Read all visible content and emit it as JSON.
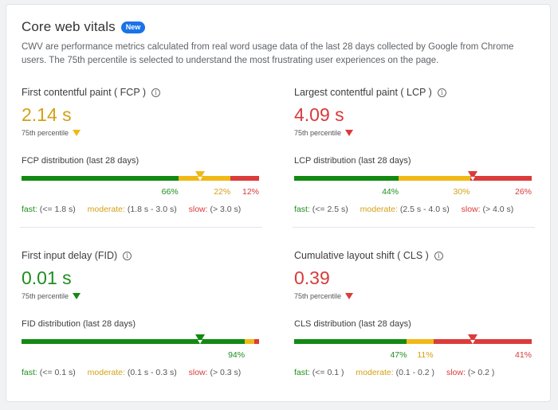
{
  "header": {
    "title": "Core web vitals",
    "badge": "New",
    "description": "CWV are performance metrics calculated from real word usage data of the last 28 days collected by Google from Chrome users. The 75th percentile is selected to understand the most frustrating user experiences on the page."
  },
  "colors": {
    "fast": "#128a12",
    "moderate": "#f0b916",
    "slow": "#dc3b3b",
    "badge": "#1a73e8",
    "fast_text": "#1e8e1e",
    "moderate_text": "#d4a017",
    "slow_text": "#d93a3a"
  },
  "metrics": {
    "fcp": {
      "name": "First contentful paint ( FCP )",
      "value": "2.14 s",
      "status": "moderate",
      "percentile_label": "75th percentile",
      "distribution_label": "FCP distribution (last 28 days)",
      "fast_pct": 66,
      "moderate_pct": 22,
      "slow_pct": 12,
      "fast_label": "66%",
      "moderate_label": "22%",
      "slow_label": "12%",
      "marker_pct": 75,
      "legend": {
        "fast_key": "fast:",
        "fast_range": "(<= 1.8 s)",
        "moderate_key": "moderate:",
        "moderate_range": "(1.8 s - 3.0 s)",
        "slow_key": "slow:",
        "slow_range": "(> 3.0 s)"
      }
    },
    "lcp": {
      "name": "Largest contentful paint ( LCP )",
      "value": "4.09 s",
      "status": "slow",
      "percentile_label": "75th percentile",
      "distribution_label": "LCP distribution (last 28 days)",
      "fast_pct": 44,
      "moderate_pct": 30,
      "slow_pct": 26,
      "fast_label": "44%",
      "moderate_label": "30%",
      "slow_label": "26%",
      "marker_pct": 75,
      "legend": {
        "fast_key": "fast:",
        "fast_range": "(<= 2.5 s)",
        "moderate_key": "moderate:",
        "moderate_range": "(2.5 s - 4.0 s)",
        "slow_key": "slow:",
        "slow_range": "(> 4.0 s)"
      }
    },
    "fid": {
      "name": "First input delay (FID)",
      "value": "0.01 s",
      "status": "fast",
      "percentile_label": "75th percentile",
      "distribution_label": "FID distribution (last 28 days)",
      "fast_pct": 94,
      "moderate_pct": 4,
      "slow_pct": 2,
      "fast_label": "94%",
      "moderate_label": "",
      "slow_label": "",
      "marker_pct": 75,
      "legend": {
        "fast_key": "fast:",
        "fast_range": "(<= 0.1 s)",
        "moderate_key": "moderate:",
        "moderate_range": "(0.1 s - 0.3 s)",
        "slow_key": "slow:",
        "slow_range": "(> 0.3 s)"
      }
    },
    "cls": {
      "name": "Cumulative layout shift ( CLS )",
      "value": "0.39",
      "status": "slow",
      "percentile_label": "75th percentile",
      "distribution_label": "CLS distribution (last 28 days)",
      "fast_pct": 47,
      "moderate_pct": 11,
      "slow_pct": 41,
      "fast_label": "47%",
      "moderate_label": "11%",
      "slow_label": "41%",
      "marker_pct": 75,
      "legend": {
        "fast_key": "fast:",
        "fast_range": "(<= 0.1 )",
        "moderate_key": "moderate:",
        "moderate_range": "(0.1 - 0.2 )",
        "slow_key": "slow:",
        "slow_range": "(> 0.2 )"
      }
    }
  }
}
